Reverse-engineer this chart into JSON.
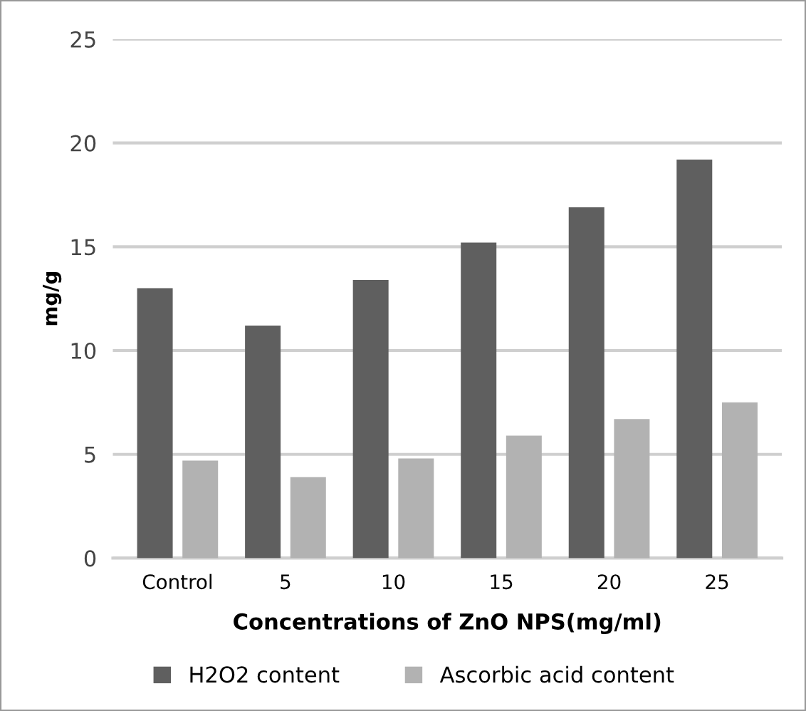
{
  "chart_data": {
    "type": "bar",
    "xlabel": "Concentrations of ZnO NPS(mg/ml)",
    "ylabel": "mg/g",
    "categories": [
      "Control",
      "5",
      "10",
      "15",
      "20",
      "25"
    ],
    "series": [
      {
        "name": "H2O2 content",
        "color": "#5f5f5f",
        "values": [
          13.0,
          11.2,
          13.4,
          15.2,
          16.9,
          19.2
        ]
      },
      {
        "name": "Ascorbic acid content",
        "color": "#b2b2b2",
        "values": [
          4.7,
          3.9,
          4.8,
          5.9,
          6.7,
          7.5
        ]
      }
    ],
    "ylim": [
      0,
      25
    ],
    "yticks": [
      0,
      5,
      10,
      15,
      20,
      25
    ],
    "grid": "y",
    "legend": "bottom"
  }
}
